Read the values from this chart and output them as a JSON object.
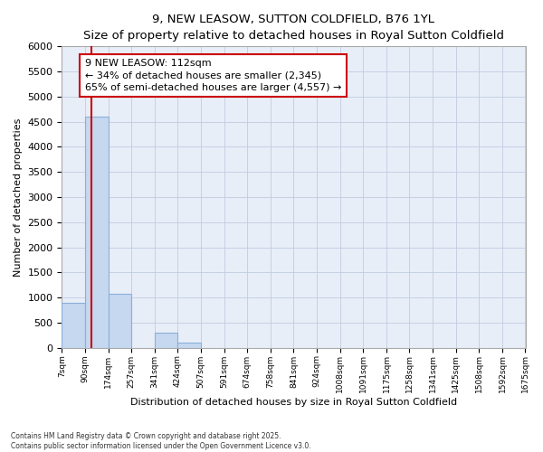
{
  "title": "9, NEW LEASOW, SUTTON COLDFIELD, B76 1YL",
  "subtitle": "Size of property relative to detached houses in Royal Sutton Coldfield",
  "xlabel": "Distribution of detached houses by size in Royal Sutton Coldfield",
  "ylabel": "Number of detached properties",
  "footer": "Contains HM Land Registry data © Crown copyright and database right 2025.\nContains public sector information licensed under the Open Government Licence v3.0.",
  "bin_edges": [
    7,
    90,
    174,
    257,
    341,
    424,
    507,
    591,
    674,
    758,
    841,
    924,
    1008,
    1091,
    1175,
    1258,
    1341,
    1425,
    1508,
    1592,
    1675
  ],
  "bar_heights": [
    900,
    4600,
    1080,
    0,
    300,
    100,
    0,
    0,
    0,
    0,
    0,
    0,
    0,
    0,
    0,
    0,
    0,
    0,
    0,
    0
  ],
  "property_size": 112,
  "annotation_title": "9 NEW LEASOW: 112sqm",
  "annotation_line1": "← 34% of detached houses are smaller (2,345)",
  "annotation_line2": "65% of semi-detached houses are larger (4,557) →",
  "bar_color": "#c5d8f0",
  "bar_edge_color": "#8ab0d8",
  "vline_color": "#cc0000",
  "annotation_box_color": "#cc0000",
  "bg_color": "#e8eef8",
  "grid_color": "#c0cce0",
  "ylim": [
    0,
    6000
  ],
  "yticks": [
    0,
    500,
    1000,
    1500,
    2000,
    2500,
    3000,
    3500,
    4000,
    4500,
    5000,
    5500,
    6000
  ]
}
